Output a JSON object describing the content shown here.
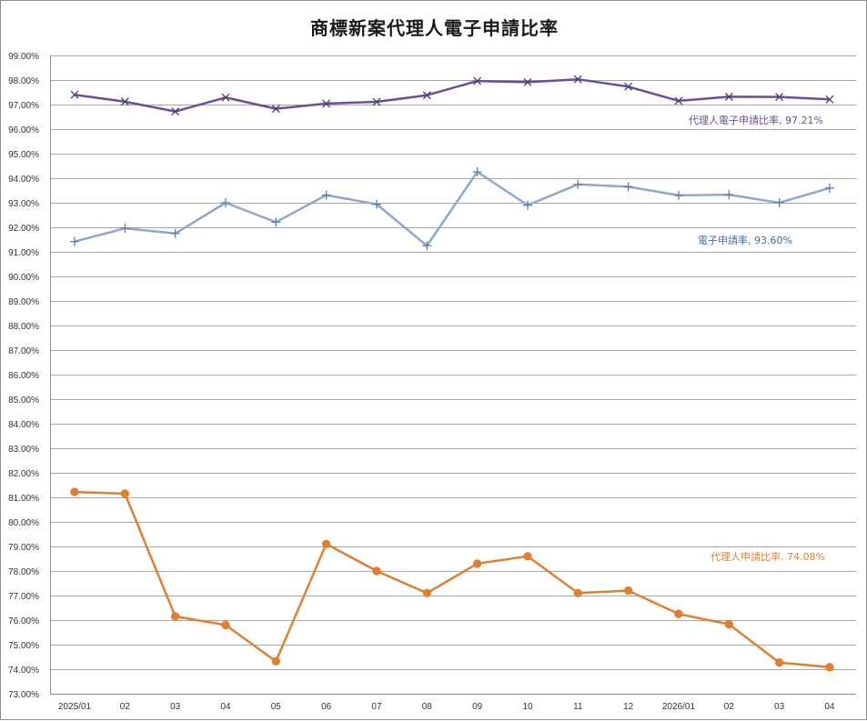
{
  "chart_data": {
    "type": "line",
    "title": "商標新案代理人電子申請比率",
    "xlabel": "",
    "ylabel": "",
    "ylim": [
      0.73,
      0.99
    ],
    "y_tick_step": 0.01,
    "y_tick_format": "percent_2dp",
    "grid": true,
    "categories": [
      "2025/01",
      "02",
      "03",
      "04",
      "05",
      "06",
      "07",
      "08",
      "09",
      "10",
      "11",
      "12",
      "2026/01",
      "02",
      "03",
      "04"
    ],
    "series": [
      {
        "name": "代理人電子申請比率",
        "label": "代理人電子申請比率, 97.21%",
        "color": "#6b4f96",
        "marker": "x",
        "values": [
          0.974,
          0.9712,
          0.9672,
          0.9729,
          0.9683,
          0.9704,
          0.9711,
          0.9738,
          0.9796,
          0.9791,
          0.9803,
          0.9773,
          0.9715,
          0.9732,
          0.9731,
          0.9721
        ]
      },
      {
        "name": "電子申請率",
        "label": "電子申請率, 93.60%",
        "color": "#8ea7cc",
        "marker": "plus",
        "values": [
          0.9142,
          0.9196,
          0.9175,
          0.93,
          0.9221,
          0.9331,
          0.9294,
          0.9125,
          0.9426,
          0.929,
          0.9375,
          0.9365,
          0.933,
          0.9333,
          0.93,
          0.936
        ]
      },
      {
        "name": "代理人申請比率",
        "label": "代理人申請比率, 74.08%",
        "color": "#e07f30",
        "marker": "circle",
        "values": [
          0.8122,
          0.8115,
          0.7615,
          0.758,
          0.7432,
          0.791,
          0.78,
          0.771,
          0.783,
          0.786,
          0.771,
          0.772,
          0.7625,
          0.7583,
          0.7427,
          0.7408
        ]
      }
    ]
  }
}
